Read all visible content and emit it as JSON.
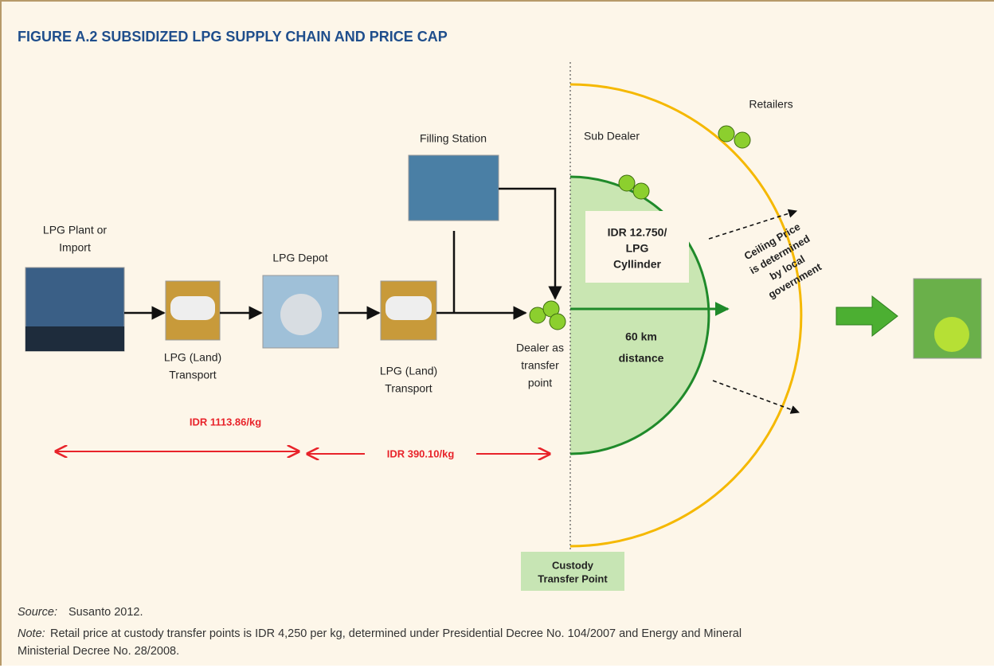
{
  "title": "FIGURE A.2   SUBSIDIZED LPG SUPPLY CHAIN AND PRICE CAP",
  "nodes": [
    {
      "label": [
        "LPG Plant or",
        "Import"
      ]
    },
    {
      "label": [
        "LPG (Land)",
        "Transport"
      ]
    },
    {
      "label": [
        "LPG Depot"
      ]
    },
    {
      "label": [
        "LPG (Land)",
        "Transport"
      ]
    },
    {
      "label": [
        "Filling Station"
      ]
    },
    {
      "label": [
        "Dealer as",
        "transfer",
        "point"
      ]
    },
    {
      "label": [
        "Sub Dealer"
      ]
    },
    {
      "label": [
        "Retailers"
      ]
    }
  ],
  "zone": {
    "price": [
      "IDR 12.750/",
      "LPG",
      "Cyllinder"
    ],
    "distance": [
      "60 km",
      "distance"
    ],
    "ceiling": [
      "Ceiling Price",
      "is determined",
      "by local",
      "government"
    ]
  },
  "costs": [
    "IDR 1113.86/kg",
    "IDR 390.10/kg"
  ],
  "custody": [
    "Custody",
    "Transfer Point"
  ],
  "source": {
    "label": "Source:",
    "text": "Susanto 2012."
  },
  "note": {
    "label": "Note:",
    "lines": [
      "Retail price at custody transfer points is IDR 4,250 per kg, determined under Presidential Decree No. 104/2007 and Energy and Mineral",
      "Ministerial Decree No. 28/2008."
    ]
  }
}
